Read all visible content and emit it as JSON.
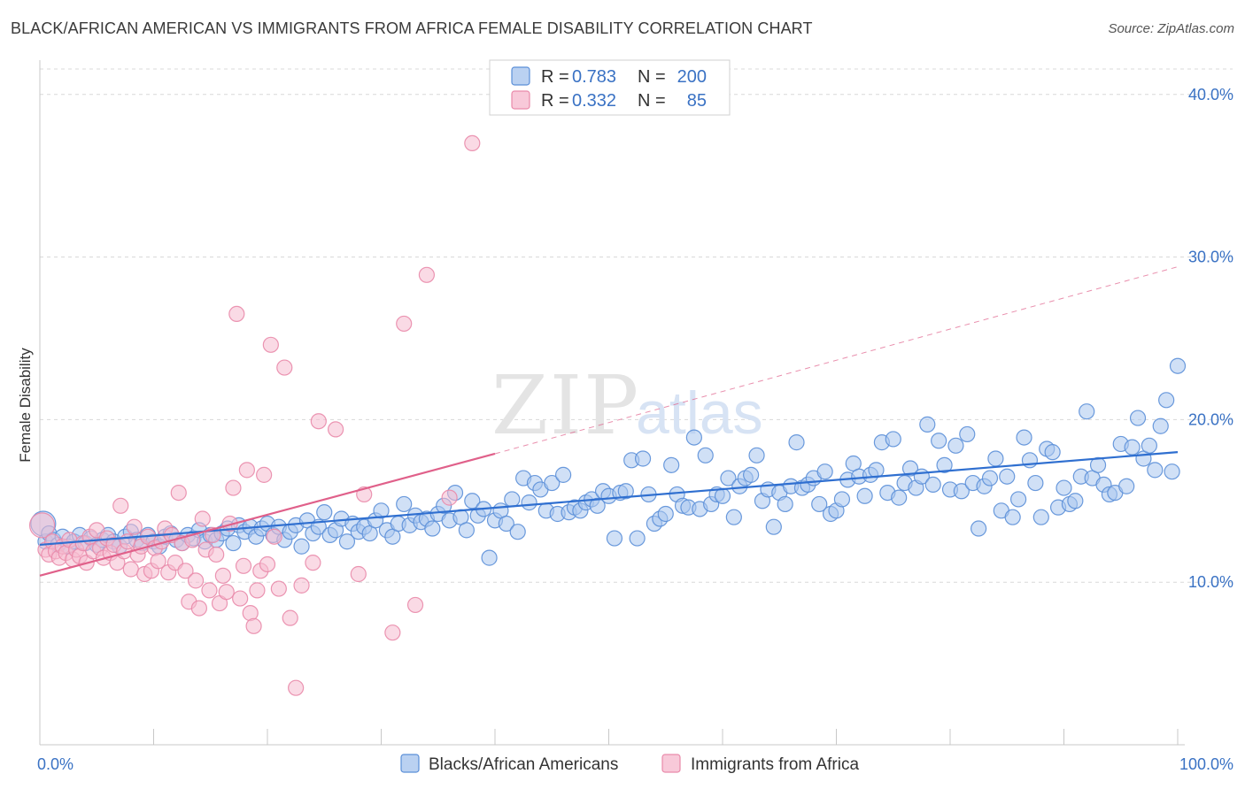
{
  "title": "BLACK/AFRICAN AMERICAN VS IMMIGRANTS FROM AFRICA FEMALE DISABILITY CORRELATION CHART",
  "source": "Source: ZipAtlas.com",
  "watermark": {
    "zip": "ZIP",
    "atlas": "atlas"
  },
  "colors": {
    "blue_fill": "#a9c6ee",
    "blue_stroke": "#5b8fd8",
    "blue_line": "#2f6fd0",
    "pink_fill": "#f6bcd0",
    "pink_stroke": "#e98aaa",
    "pink_line": "#e0608a",
    "grid": "#d8d8d8",
    "tick_label": "#3a72c4"
  },
  "legend": {
    "rows": [
      {
        "r_label": "R =",
        "r_value": "0.783",
        "n_label": "N =",
        "n_value": "200"
      },
      {
        "r_label": "R =",
        "r_value": "0.332",
        "n_label": "N =",
        "n_value": "85"
      }
    ]
  },
  "bottom_legend": [
    "Blacks/African Americans",
    "Immigrants from Africa"
  ],
  "chart_data": {
    "type": "scatter",
    "title": "BLACK/AFRICAN AMERICAN VS IMMIGRANTS FROM AFRICA FEMALE DISABILITY CORRELATION CHART",
    "xlabel": "",
    "ylabel": "Female Disability",
    "xlim": [
      0,
      100
    ],
    "ylim": [
      0,
      42
    ],
    "x_tick_labels": [
      "0.0%",
      "100.0%"
    ],
    "y_ticks": [
      10,
      20,
      30,
      40
    ],
    "y_tick_labels": [
      "10.0%",
      "20.0%",
      "30.0%",
      "40.0%"
    ],
    "grid": "horizontal dashed",
    "legend_position": "top-center",
    "series": [
      {
        "name": "Blacks/African Americans",
        "r": 0.783,
        "n": 200,
        "trend": {
          "x0": 0,
          "y0": 12.3,
          "x1": 100,
          "y1": 18.0
        },
        "points": [
          [
            0.3,
            13.6
          ],
          [
            0.5,
            12.5
          ],
          [
            0.8,
            13.0
          ],
          [
            1.2,
            12.6
          ],
          [
            1.6,
            12.3
          ],
          [
            2,
            12.8
          ],
          [
            2.5,
            12.2
          ],
          [
            3,
            12.5
          ],
          [
            3.5,
            12.9
          ],
          [
            4,
            12.4
          ],
          [
            4.5,
            12.7
          ],
          [
            5,
            12.3
          ],
          [
            5.5,
            12.6
          ],
          [
            6,
            12.9
          ],
          [
            6.5,
            12.5
          ],
          [
            7,
            12.2
          ],
          [
            7.5,
            12.8
          ],
          [
            8,
            13.1
          ],
          [
            8.5,
            12.6
          ],
          [
            9,
            12.4
          ],
          [
            9.5,
            12.9
          ],
          [
            10,
            12.5
          ],
          [
            10.5,
            12.2
          ],
          [
            11,
            12.8
          ],
          [
            11.5,
            13.0
          ],
          [
            12,
            12.6
          ],
          [
            12.5,
            12.4
          ],
          [
            13,
            12.9
          ],
          [
            13.5,
            12.7
          ],
          [
            14,
            13.2
          ],
          [
            14.5,
            12.5
          ],
          [
            15,
            12.9
          ],
          [
            15.5,
            12.6
          ],
          [
            16,
            13.0
          ],
          [
            16.5,
            13.3
          ],
          [
            17,
            12.4
          ],
          [
            17.5,
            13.5
          ],
          [
            18,
            13.1
          ],
          [
            18.5,
            13.4
          ],
          [
            19,
            12.8
          ],
          [
            19.5,
            13.3
          ],
          [
            20,
            13.6
          ],
          [
            20.5,
            12.9
          ],
          [
            21,
            13.4
          ],
          [
            21.5,
            12.6
          ],
          [
            22,
            13.1
          ],
          [
            22.5,
            13.5
          ],
          [
            23,
            12.2
          ],
          [
            23.5,
            13.8
          ],
          [
            24,
            13.0
          ],
          [
            24.5,
            13.4
          ],
          [
            25,
            14.3
          ],
          [
            25.5,
            12.9
          ],
          [
            26,
            13.2
          ],
          [
            26.5,
            13.9
          ],
          [
            27,
            12.5
          ],
          [
            27.5,
            13.6
          ],
          [
            28,
            13.1
          ],
          [
            28.5,
            13.4
          ],
          [
            29,
            13.0
          ],
          [
            29.5,
            13.8
          ],
          [
            30,
            14.4
          ],
          [
            30.5,
            13.2
          ],
          [
            31,
            12.8
          ],
          [
            31.5,
            13.6
          ],
          [
            32,
            14.8
          ],
          [
            32.5,
            13.5
          ],
          [
            33,
            14.1
          ],
          [
            33.5,
            13.7
          ],
          [
            34,
            13.9
          ],
          [
            34.5,
            13.3
          ],
          [
            35,
            14.2
          ],
          [
            35.5,
            14.7
          ],
          [
            36,
            13.8
          ],
          [
            36.5,
            15.5
          ],
          [
            37,
            14.0
          ],
          [
            37.5,
            13.2
          ],
          [
            38,
            15.0
          ],
          [
            38.5,
            14.1
          ],
          [
            39,
            14.5
          ],
          [
            39.5,
            11.5
          ],
          [
            40,
            13.8
          ],
          [
            40.5,
            14.4
          ],
          [
            41,
            13.6
          ],
          [
            41.5,
            15.1
          ],
          [
            42,
            13.1
          ],
          [
            42.5,
            16.4
          ],
          [
            43,
            14.9
          ],
          [
            43.5,
            16.1
          ],
          [
            44,
            15.7
          ],
          [
            44.5,
            14.4
          ],
          [
            45,
            16.1
          ],
          [
            45.5,
            14.2
          ],
          [
            46,
            16.6
          ],
          [
            46.5,
            14.3
          ],
          [
            47,
            14.6
          ],
          [
            47.5,
            14.4
          ],
          [
            48,
            14.9
          ],
          [
            48.5,
            15.1
          ],
          [
            49,
            14.7
          ],
          [
            49.5,
            15.6
          ],
          [
            50,
            15.3
          ],
          [
            50.5,
            12.7
          ],
          [
            51,
            15.5
          ],
          [
            51.5,
            15.6
          ],
          [
            52,
            17.5
          ],
          [
            52.5,
            12.7
          ],
          [
            53,
            17.6
          ],
          [
            53.5,
            15.4
          ],
          [
            54,
            13.6
          ],
          [
            54.5,
            13.9
          ],
          [
            55,
            14.2
          ],
          [
            55.5,
            17.2
          ],
          [
            56,
            15.4
          ],
          [
            56.5,
            14.7
          ],
          [
            57,
            14.6
          ],
          [
            57.5,
            18.9
          ],
          [
            58,
            14.5
          ],
          [
            58.5,
            17.8
          ],
          [
            59,
            14.8
          ],
          [
            59.5,
            15.4
          ],
          [
            60,
            15.3
          ],
          [
            60.5,
            16.4
          ],
          [
            61,
            14.0
          ],
          [
            61.5,
            15.9
          ],
          [
            62,
            16.4
          ],
          [
            62.5,
            16.6
          ],
          [
            63,
            17.8
          ],
          [
            63.5,
            15.0
          ],
          [
            64,
            15.7
          ],
          [
            64.5,
            13.4
          ],
          [
            65,
            15.5
          ],
          [
            65.5,
            14.8
          ],
          [
            66,
            15.9
          ],
          [
            66.5,
            18.6
          ],
          [
            67,
            15.8
          ],
          [
            67.5,
            16.0
          ],
          [
            68,
            16.4
          ],
          [
            68.5,
            14.8
          ],
          [
            69,
            16.8
          ],
          [
            69.5,
            14.2
          ],
          [
            70,
            14.4
          ],
          [
            70.5,
            15.1
          ],
          [
            71,
            16.3
          ],
          [
            71.5,
            17.3
          ],
          [
            72,
            16.5
          ],
          [
            72.5,
            15.3
          ],
          [
            73,
            16.6
          ],
          [
            73.5,
            16.9
          ],
          [
            74,
            18.6
          ],
          [
            74.5,
            15.5
          ],
          [
            75,
            18.8
          ],
          [
            75.5,
            15.2
          ],
          [
            76,
            16.1
          ],
          [
            76.5,
            17.0
          ],
          [
            77,
            15.8
          ],
          [
            77.5,
            16.5
          ],
          [
            78,
            19.7
          ],
          [
            78.5,
            16.0
          ],
          [
            79,
            18.7
          ],
          [
            79.5,
            17.2
          ],
          [
            80,
            15.7
          ],
          [
            80.5,
            18.4
          ],
          [
            81,
            15.6
          ],
          [
            81.5,
            19.1
          ],
          [
            82,
            16.1
          ],
          [
            82.5,
            13.3
          ],
          [
            83,
            15.9
          ],
          [
            83.5,
            16.4
          ],
          [
            84,
            17.6
          ],
          [
            84.5,
            14.4
          ],
          [
            85,
            16.5
          ],
          [
            85.5,
            14.0
          ],
          [
            86,
            15.1
          ],
          [
            86.5,
            18.9
          ],
          [
            87,
            17.5
          ],
          [
            87.5,
            16.1
          ],
          [
            88,
            14.0
          ],
          [
            88.5,
            18.2
          ],
          [
            89,
            18.0
          ],
          [
            89.5,
            14.6
          ],
          [
            90,
            15.8
          ],
          [
            90.5,
            14.8
          ],
          [
            91,
            15.0
          ],
          [
            91.5,
            16.5
          ],
          [
            92,
            20.5
          ],
          [
            92.5,
            16.4
          ],
          [
            93,
            17.2
          ],
          [
            93.5,
            16.0
          ],
          [
            94,
            15.4
          ],
          [
            94.5,
            15.5
          ],
          [
            95,
            18.5
          ],
          [
            95.5,
            15.9
          ],
          [
            96,
            18.3
          ],
          [
            96.5,
            20.1
          ],
          [
            97,
            17.6
          ],
          [
            97.5,
            18.4
          ],
          [
            98,
            16.9
          ],
          [
            98.5,
            19.6
          ],
          [
            99,
            21.2
          ],
          [
            99.5,
            16.8
          ],
          [
            100,
            23.3
          ]
        ]
      },
      {
        "name": "Immigrants from Africa",
        "r": 0.332,
        "n": 85,
        "trend": {
          "x0": 0,
          "y0": 10.4,
          "x1": 40,
          "y1": 17.9,
          "dash_to": {
            "x": 100,
            "y": 29.4
          }
        },
        "points": [
          [
            0.2,
            13.5
          ],
          [
            0.5,
            12.0
          ],
          [
            0.8,
            11.7
          ],
          [
            1.1,
            12.5
          ],
          [
            1.4,
            11.9
          ],
          [
            1.7,
            11.5
          ],
          [
            2,
            12.2
          ],
          [
            2.3,
            11.8
          ],
          [
            2.6,
            12.6
          ],
          [
            2.9,
            11.4
          ],
          [
            3.2,
            12.0
          ],
          [
            3.5,
            11.6
          ],
          [
            3.8,
            12.4
          ],
          [
            4.1,
            11.2
          ],
          [
            4.4,
            12.8
          ],
          [
            4.7,
            11.9
          ],
          [
            5,
            13.2
          ],
          [
            5.3,
            12.1
          ],
          [
            5.6,
            11.5
          ],
          [
            5.9,
            12.7
          ],
          [
            6.2,
            11.8
          ],
          [
            6.5,
            12.3
          ],
          [
            6.8,
            11.2
          ],
          [
            7.1,
            14.7
          ],
          [
            7.4,
            11.9
          ],
          [
            7.7,
            12.5
          ],
          [
            8,
            10.8
          ],
          [
            8.3,
            13.4
          ],
          [
            8.6,
            11.7
          ],
          [
            8.9,
            12.2
          ],
          [
            9.2,
            10.5
          ],
          [
            9.5,
            12.8
          ],
          [
            9.8,
            10.7
          ],
          [
            10.1,
            12.1
          ],
          [
            10.4,
            11.3
          ],
          [
            10.7,
            12.5
          ],
          [
            11,
            13.3
          ],
          [
            11.3,
            10.6
          ],
          [
            11.6,
            12.9
          ],
          [
            11.9,
            11.2
          ],
          [
            12.2,
            15.5
          ],
          [
            12.5,
            12.4
          ],
          [
            12.8,
            10.7
          ],
          [
            13.1,
            8.8
          ],
          [
            13.4,
            12.6
          ],
          [
            13.7,
            10.1
          ],
          [
            14,
            8.4
          ],
          [
            14.3,
            13.9
          ],
          [
            14.6,
            12.0
          ],
          [
            14.9,
            9.5
          ],
          [
            15.2,
            12.9
          ],
          [
            15.5,
            11.7
          ],
          [
            15.8,
            8.7
          ],
          [
            16.1,
            10.4
          ],
          [
            16.4,
            9.4
          ],
          [
            16.7,
            13.6
          ],
          [
            17,
            15.8
          ],
          [
            17.3,
            26.5
          ],
          [
            17.6,
            9.0
          ],
          [
            17.9,
            11.0
          ],
          [
            18.2,
            16.9
          ],
          [
            18.5,
            8.1
          ],
          [
            18.8,
            7.3
          ],
          [
            19.1,
            9.5
          ],
          [
            19.4,
            10.7
          ],
          [
            19.7,
            16.6
          ],
          [
            20,
            11.1
          ],
          [
            20.3,
            24.6
          ],
          [
            20.6,
            12.8
          ],
          [
            21,
            9.6
          ],
          [
            21.5,
            23.2
          ],
          [
            22,
            7.8
          ],
          [
            22.5,
            3.5
          ],
          [
            23,
            9.8
          ],
          [
            24,
            11.2
          ],
          [
            24.5,
            19.9
          ],
          [
            26,
            19.4
          ],
          [
            28,
            10.5
          ],
          [
            28.5,
            15.4
          ],
          [
            31,
            6.9
          ],
          [
            32,
            25.9
          ],
          [
            33,
            8.6
          ],
          [
            34,
            28.9
          ],
          [
            36,
            15.2
          ],
          [
            38,
            37.0
          ]
        ]
      }
    ]
  }
}
